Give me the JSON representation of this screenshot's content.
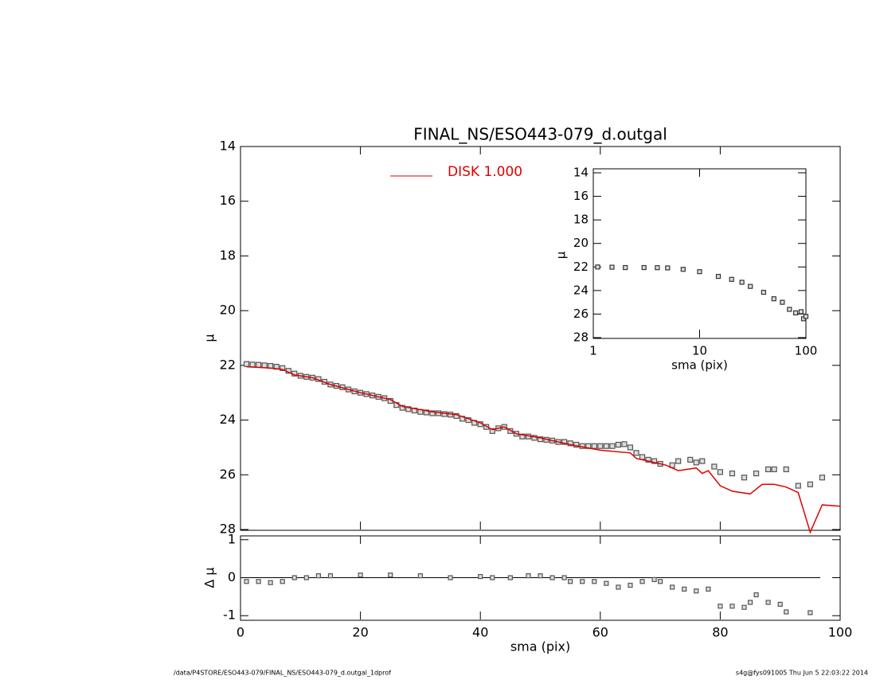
{
  "footer": {
    "left": "/data/P4STORE/ESO443-079/FINAL_NS/ESO443-079_d.outgal_1dprof",
    "right": "s4g@fys091005  Thu Jun  5 22:03:22 2014"
  },
  "chart_data": [
    {
      "type": "line",
      "title": "FINAL_NS/ESO443-079_d.outgal",
      "y_label": "μ",
      "xlim": [
        0,
        100
      ],
      "xticks": [
        0,
        20,
        40,
        60,
        80,
        100
      ],
      "show_xtick_labels": false,
      "ylim": [
        28,
        14
      ],
      "yticks": [
        14,
        16,
        18,
        20,
        22,
        24,
        26,
        28
      ],
      "series": [
        {
          "marker": "square",
          "color": "#555555",
          "x": [
            1,
            2,
            3,
            4,
            5,
            6,
            7,
            8,
            9,
            10,
            11,
            12,
            13,
            14,
            15,
            16,
            17,
            18,
            19,
            20,
            21,
            22,
            23,
            24,
            25,
            26,
            27,
            28,
            29,
            30,
            31,
            32,
            33,
            34,
            35,
            36,
            37,
            38,
            39,
            40,
            41,
            42,
            43,
            44,
            45,
            46,
            47,
            48,
            49,
            50,
            51,
            52,
            53,
            54,
            55,
            56,
            57,
            58,
            59,
            60,
            61,
            62,
            63,
            64,
            65,
            66,
            67,
            68,
            69,
            70,
            72,
            73,
            75,
            76,
            77,
            79,
            80,
            82,
            84,
            86,
            88,
            89,
            91,
            93,
            95,
            97
          ],
          "values": [
            21.95,
            21.97,
            21.98,
            22.0,
            22.02,
            22.05,
            22.1,
            22.2,
            22.3,
            22.38,
            22.42,
            22.45,
            22.5,
            22.6,
            22.7,
            22.75,
            22.8,
            22.88,
            22.95,
            23.0,
            23.05,
            23.1,
            23.15,
            23.2,
            23.3,
            23.45,
            23.55,
            23.6,
            23.65,
            23.7,
            23.72,
            23.75,
            23.75,
            23.78,
            23.8,
            23.85,
            23.95,
            24.0,
            24.1,
            24.15,
            24.25,
            24.4,
            24.3,
            24.25,
            24.4,
            24.5,
            24.6,
            24.6,
            24.65,
            24.7,
            24.72,
            24.75,
            24.8,
            24.8,
            24.85,
            24.9,
            24.95,
            24.95,
            24.95,
            24.95,
            24.95,
            24.95,
            24.9,
            24.88,
            25.0,
            25.2,
            25.35,
            25.45,
            25.5,
            25.6,
            25.65,
            25.5,
            25.45,
            25.55,
            25.5,
            25.7,
            25.9,
            25.95,
            26.1,
            25.95,
            25.8,
            25.8,
            25.8,
            26.4,
            26.35,
            26.1
          ]
        },
        {
          "name": "DISK  1.000",
          "color": "#e00000",
          "x": [
            1,
            5,
            7,
            9,
            12,
            15,
            20,
            25,
            27,
            32,
            36,
            40,
            42,
            44,
            46,
            50,
            55,
            60,
            65,
            66,
            70,
            71,
            73,
            76,
            77,
            78,
            80,
            82,
            85,
            87,
            89,
            91,
            93,
            95,
            97,
            100
          ],
          "values": [
            22.05,
            22.1,
            22.15,
            22.35,
            22.45,
            22.7,
            23.0,
            23.25,
            23.5,
            23.7,
            23.8,
            24.1,
            24.35,
            24.25,
            24.5,
            24.65,
            24.9,
            25.1,
            25.2,
            25.4,
            25.6,
            25.65,
            25.85,
            25.75,
            25.95,
            25.85,
            26.4,
            26.6,
            26.7,
            26.35,
            26.35,
            26.45,
            26.65,
            28.1,
            27.1,
            27.15
          ]
        }
      ]
    },
    {
      "type": "scatter",
      "x_label": "sma (pix)",
      "y_label": "Δ μ",
      "xlim": [
        0,
        100
      ],
      "xticks": [
        0,
        20,
        40,
        60,
        80,
        100
      ],
      "ylim": [
        -1.1,
        1.1
      ],
      "yticks": [
        -1,
        0,
        1
      ],
      "hline": 0,
      "series": [
        {
          "marker": "square",
          "color": "#555555",
          "x": [
            1,
            3,
            5,
            7,
            9,
            11,
            13,
            15,
            20,
            25,
            30,
            35,
            40,
            42,
            45,
            48,
            50,
            52,
            54,
            55,
            57,
            59,
            61,
            63,
            65,
            67,
            69,
            70,
            72,
            74,
            76,
            78,
            80,
            82,
            84,
            85,
            86,
            88,
            90,
            91,
            95
          ],
          "values": [
            -0.1,
            -0.1,
            -0.13,
            -0.1,
            0,
            0,
            0.05,
            0.05,
            0.07,
            0.07,
            0.05,
            0,
            0.03,
            0,
            0,
            0.05,
            0.05,
            0,
            0,
            -0.1,
            -0.1,
            -0.1,
            -0.15,
            -0.25,
            -0.2,
            -0.1,
            -0.05,
            -0.1,
            -0.25,
            -0.3,
            -0.35,
            -0.3,
            -0.75,
            -0.75,
            -0.78,
            -0.65,
            -0.45,
            -0.65,
            -0.7,
            -0.9,
            -0.92
          ]
        }
      ]
    },
    {
      "type": "line",
      "x_label": "sma (pix)",
      "y_label": "μ",
      "xscale": "log",
      "xlim": [
        1,
        100
      ],
      "xticks": [
        1,
        10,
        100
      ],
      "ylim": [
        28,
        14
      ],
      "yticks": [
        14,
        16,
        18,
        20,
        22,
        24,
        26,
        28
      ],
      "series": [
        {
          "marker": "square",
          "color": "#333333",
          "x": [
            1.1,
            1.5,
            2,
            3,
            4,
            5,
            7,
            10,
            15,
            20,
            25,
            30,
            40,
            50,
            60,
            70,
            80,
            90,
            95,
            100
          ],
          "values": [
            22.0,
            22.02,
            22.05,
            22.05,
            22.06,
            22.08,
            22.2,
            22.4,
            22.8,
            23.05,
            23.3,
            23.65,
            24.15,
            24.7,
            25.0,
            25.6,
            25.9,
            25.8,
            26.4,
            26.2
          ]
        }
      ]
    }
  ]
}
